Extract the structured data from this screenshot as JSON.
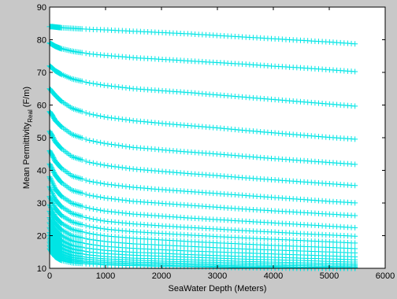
{
  "chart_data": {
    "type": "scatter",
    "xlabel": "SeaWater Depth (Meters)",
    "ylabel": {
      "main": "Mean Permittivity",
      "subscript": "Real",
      "unit": " (F/m)"
    },
    "xlim": [
      0,
      6000
    ],
    "ylim": [
      10,
      90
    ],
    "xticks": [
      0,
      1000,
      2000,
      3000,
      4000,
      5000,
      6000
    ],
    "yticks": [
      10,
      20,
      30,
      40,
      50,
      60,
      70,
      80,
      90
    ],
    "grid": false,
    "legend": "none",
    "marker": "+",
    "marker_color": "#00e5e5",
    "background_color": "#ffffff",
    "figure_color": "#c8c8c8",
    "x": [
      0,
      50,
      100,
      200,
      400,
      700,
      1000,
      1500,
      2000,
      2500,
      3000,
      3500,
      4000,
      4500,
      5000,
      5500
    ],
    "series": [
      {
        "values": [
          84,
          84,
          83.9,
          83.7,
          83.5,
          83.2,
          83,
          82.6,
          82.2,
          81.8,
          81.3,
          80.8,
          80.3,
          79.8,
          79.3,
          78.7
        ]
      },
      {
        "values": [
          79,
          78.5,
          78,
          77.3,
          76.5,
          75.7,
          75.2,
          74.5,
          74,
          73.5,
          73,
          72.5,
          71.9,
          71.4,
          70.8,
          70.2
        ]
      },
      {
        "values": [
          72,
          71.3,
          70.5,
          69.5,
          68,
          66.8,
          66,
          65,
          64.4,
          63.8,
          63.1,
          62.4,
          61.7,
          61,
          60.3,
          59.6
        ]
      },
      {
        "values": [
          65,
          64,
          63,
          61.3,
          59,
          57.3,
          56.3,
          55.2,
          54.4,
          53.7,
          53,
          52.2,
          51.5,
          50.8,
          50.1,
          49.5
        ]
      },
      {
        "values": [
          58,
          56.8,
          55.3,
          53.5,
          51,
          49.2,
          48.2,
          47,
          46.3,
          45.6,
          45,
          44.3,
          43.6,
          43,
          42.4,
          41.8
        ]
      },
      {
        "values": [
          52,
          50.5,
          48.8,
          46.8,
          44.2,
          42.5,
          41.5,
          40.4,
          39.7,
          39,
          38.4,
          37.7,
          37.1,
          36.5,
          35.9,
          35.3
        ]
      },
      {
        "values": [
          46,
          44.5,
          42.8,
          40.8,
          38.3,
          36.7,
          35.8,
          34.8,
          34.1,
          33.5,
          32.9,
          32.3,
          31.7,
          31.1,
          30.5,
          30
        ]
      },
      {
        "values": [
          42,
          40.3,
          38.6,
          36.4,
          33.9,
          32.4,
          31.5,
          30.5,
          29.9,
          29.3,
          28.7,
          28.1,
          27.6,
          27.1,
          26.6,
          26.1
        ]
      },
      {
        "values": [
          38,
          36.2,
          34.3,
          32.2,
          29.9,
          28.4,
          27.5,
          26.6,
          26,
          25.4,
          24.9,
          24.4,
          23.9,
          23.4,
          22.9,
          22.4
        ]
      },
      {
        "values": [
          35,
          33,
          31.1,
          29,
          26.8,
          25.3,
          24.4,
          23.6,
          23,
          22.5,
          22,
          21.5,
          21.1,
          20.6,
          20.2,
          19.8
        ]
      },
      {
        "values": [
          32,
          30.2,
          28.4,
          26.3,
          24.2,
          22.8,
          22,
          21.2,
          20.7,
          20.2,
          19.7,
          19.3,
          18.9,
          18.5,
          18.1,
          17.7
        ]
      },
      {
        "values": [
          29.5,
          27.6,
          25.8,
          23.9,
          21.9,
          20.7,
          19.9,
          19.2,
          18.7,
          18.2,
          17.8,
          17.4,
          17,
          16.7,
          16.4,
          16
        ]
      },
      {
        "values": [
          27.5,
          25.5,
          23.8,
          21.9,
          20,
          18.9,
          18.2,
          17.5,
          17.1,
          16.7,
          16.3,
          15.9,
          15.6,
          15.3,
          15,
          14.7
        ]
      },
      {
        "values": [
          25.5,
          23.6,
          21.9,
          20.1,
          18.4,
          17.4,
          16.7,
          16.1,
          15.7,
          15.3,
          15,
          14.7,
          14.4,
          14.1,
          13.8,
          13.5
        ]
      },
      {
        "values": [
          24,
          22,
          20.3,
          18.6,
          17,
          16.1,
          15.5,
          14.9,
          14.6,
          14.2,
          13.9,
          13.6,
          13.4,
          13.1,
          12.9,
          12.6
        ]
      },
      {
        "values": [
          22.5,
          20.6,
          18.9,
          17.3,
          15.9,
          15,
          14.5,
          14,
          13.7,
          13.4,
          13.1,
          12.8,
          12.6,
          12.4,
          12.1,
          11.9
        ]
      },
      {
        "values": [
          21,
          19.2,
          17.7,
          16.2,
          14.9,
          14.1,
          13.6,
          13.1,
          12.9,
          12.6,
          12.4,
          12.1,
          11.9,
          11.7,
          11.5,
          11.3
        ]
      },
      {
        "values": [
          20,
          18.1,
          16.6,
          15.2,
          14,
          13.3,
          12.9,
          12.5,
          12.2,
          12,
          11.8,
          11.6,
          11.4,
          11.2,
          11,
          10.9
        ]
      },
      {
        "values": [
          19,
          17.1,
          15.7,
          14.4,
          13.3,
          12.7,
          12.3,
          11.9,
          11.7,
          11.5,
          11.3,
          11.1,
          10.9,
          10.8,
          10.6,
          10.5
        ]
      },
      {
        "values": [
          18,
          16.2,
          14.9,
          13.7,
          12.7,
          12.1,
          11.8,
          11.5,
          11.3,
          11.1,
          10.9,
          10.7,
          10.6,
          10.4,
          10.3,
          10.2
        ]
      },
      {
        "values": [
          17,
          15.4,
          14.2,
          13.1,
          12.2,
          11.7,
          11.4,
          11.1,
          10.9,
          10.7,
          10.6,
          10.4,
          10.3,
          10.2,
          10.1,
          10
        ]
      },
      {
        "values": [
          16,
          14.6,
          13.5,
          12.5,
          11.7,
          11.3,
          11,
          10.8,
          10.6,
          10.5,
          10.3,
          10.2,
          10.1,
          10,
          10,
          10
        ]
      }
    ]
  }
}
